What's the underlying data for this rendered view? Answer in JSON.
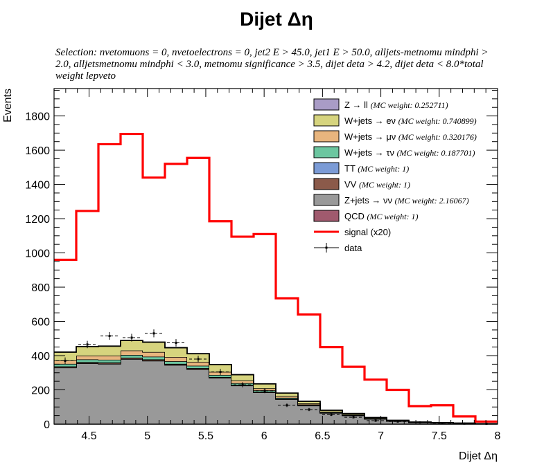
{
  "chart_data": {
    "type": "bar",
    "title": "Dijet Δη",
    "subtitle": "Selection: nvetomuons  =  0, nvetoelectrons  =  0, jet2 E > 45.0, jet1 E > 50.0, alljets-metnomu mindphi > 2.0, alljetsmetnomu mindphi < 3.0, metnomu significance > 3.5, dijet deta > 4.2, dijet deta < 8.0*total weight lepveto",
    "xlabel": "Dijet Δη",
    "ylabel": "Events",
    "xlim": [
      4.2,
      8.0
    ],
    "ylim": [
      0,
      1960
    ],
    "xticks": [
      4.5,
      5,
      5.5,
      6,
      6.5,
      7,
      7.5,
      8
    ],
    "xtick_labels": [
      "4.5",
      "5",
      "5.5",
      "6",
      "6.5",
      "7",
      "7.5",
      "8"
    ],
    "yticks": [
      0,
      200,
      400,
      600,
      800,
      1000,
      1200,
      1400,
      1600,
      1800
    ],
    "ytick_labels": [
      "0",
      "200",
      "400",
      "600",
      "800",
      "1000",
      "1200",
      "1400",
      "1600",
      "1800"
    ],
    "bin_edges": [
      4.2,
      4.39,
      4.58,
      4.77,
      4.96,
      5.15,
      5.34,
      5.53,
      5.72,
      5.91,
      6.1,
      6.29,
      6.48,
      6.67,
      6.86,
      7.05,
      7.24,
      7.43,
      7.62,
      7.81,
      8.0
    ],
    "stack": [
      {
        "name": "QCD",
        "weight_text": "(MC weight: 1)",
        "color": "#a05a6e",
        "values": [
          0,
          0,
          0,
          0,
          0,
          0,
          0,
          0,
          0,
          0,
          0,
          0,
          0,
          0,
          0,
          0,
          0,
          0,
          0,
          0
        ]
      },
      {
        "name": "Z+jets → νν",
        "weight_text": "(MC weight: 2.16067)",
        "color": "#999999",
        "values": [
          330,
          355,
          352,
          380,
          370,
          345,
          320,
          270,
          225,
          185,
          145,
          108,
          65,
          50,
          30,
          18,
          10,
          8,
          5,
          3
        ]
      },
      {
        "name": "VV",
        "weight_text": "(MC weight: 1)",
        "color": "#8b5a4a",
        "values": [
          5,
          5,
          6,
          6,
          6,
          5,
          5,
          4,
          3,
          3,
          2,
          2,
          1,
          1,
          1,
          0,
          0,
          0,
          0,
          0
        ]
      },
      {
        "name": "TT",
        "weight_text": "(MC weight: 1)",
        "color": "#7b9bd6",
        "values": [
          2,
          2,
          2,
          2,
          2,
          2,
          2,
          1,
          1,
          1,
          1,
          1,
          0,
          0,
          0,
          0,
          0,
          0,
          0,
          0
        ]
      },
      {
        "name": "W+jets → τν",
        "weight_text": "(MC weight: 0.187701)",
        "color": "#6cc6a0",
        "values": [
          15,
          16,
          16,
          16,
          16,
          15,
          14,
          12,
          10,
          8,
          6,
          4,
          3,
          2,
          1,
          1,
          0,
          0,
          0,
          0
        ]
      },
      {
        "name": "W+jets → μν",
        "weight_text": "(MC weight: 0.320176)",
        "color": "#e8b57e",
        "values": [
          20,
          22,
          24,
          26,
          27,
          25,
          22,
          18,
          15,
          12,
          9,
          6,
          4,
          3,
          2,
          1,
          1,
          0,
          0,
          0
        ]
      },
      {
        "name": "W+jets → eν",
        "weight_text": "(MC weight: 0.740899)",
        "color": "#d6d47e",
        "values": [
          48,
          52,
          55,
          58,
          57,
          54,
          48,
          42,
          34,
          26,
          18,
          12,
          8,
          6,
          4,
          2,
          1,
          1,
          1,
          0
        ]
      },
      {
        "name": "Z → ll",
        "weight_text": "(MC weight: 0.252711)",
        "color": "#a99cc6",
        "values": [
          1,
          1,
          1,
          1,
          1,
          1,
          1,
          1,
          1,
          0,
          0,
          0,
          0,
          0,
          0,
          0,
          0,
          0,
          0,
          0
        ]
      }
    ],
    "signal": {
      "name": "signal (x20)",
      "color": "#ff0000",
      "values": [
        960,
        1245,
        1635,
        1695,
        1440,
        1520,
        1555,
        1185,
        1095,
        1110,
        735,
        640,
        450,
        335,
        260,
        200,
        105,
        110,
        45,
        15
      ]
    },
    "data": {
      "name": "data",
      "values": [
        370,
        465,
        515,
        505,
        530,
        475,
        380,
        305,
        230,
        195,
        110,
        85,
        55,
        40,
        20,
        15,
        10,
        5,
        3,
        2
      ]
    },
    "legend_order": [
      "Z → ll",
      "W+jets → eν",
      "W+jets → μν",
      "W+jets → τν",
      "TT",
      "VV",
      "Z+jets → νν",
      "QCD",
      "signal (x20)",
      "data"
    ],
    "legend_position": "top-right"
  }
}
